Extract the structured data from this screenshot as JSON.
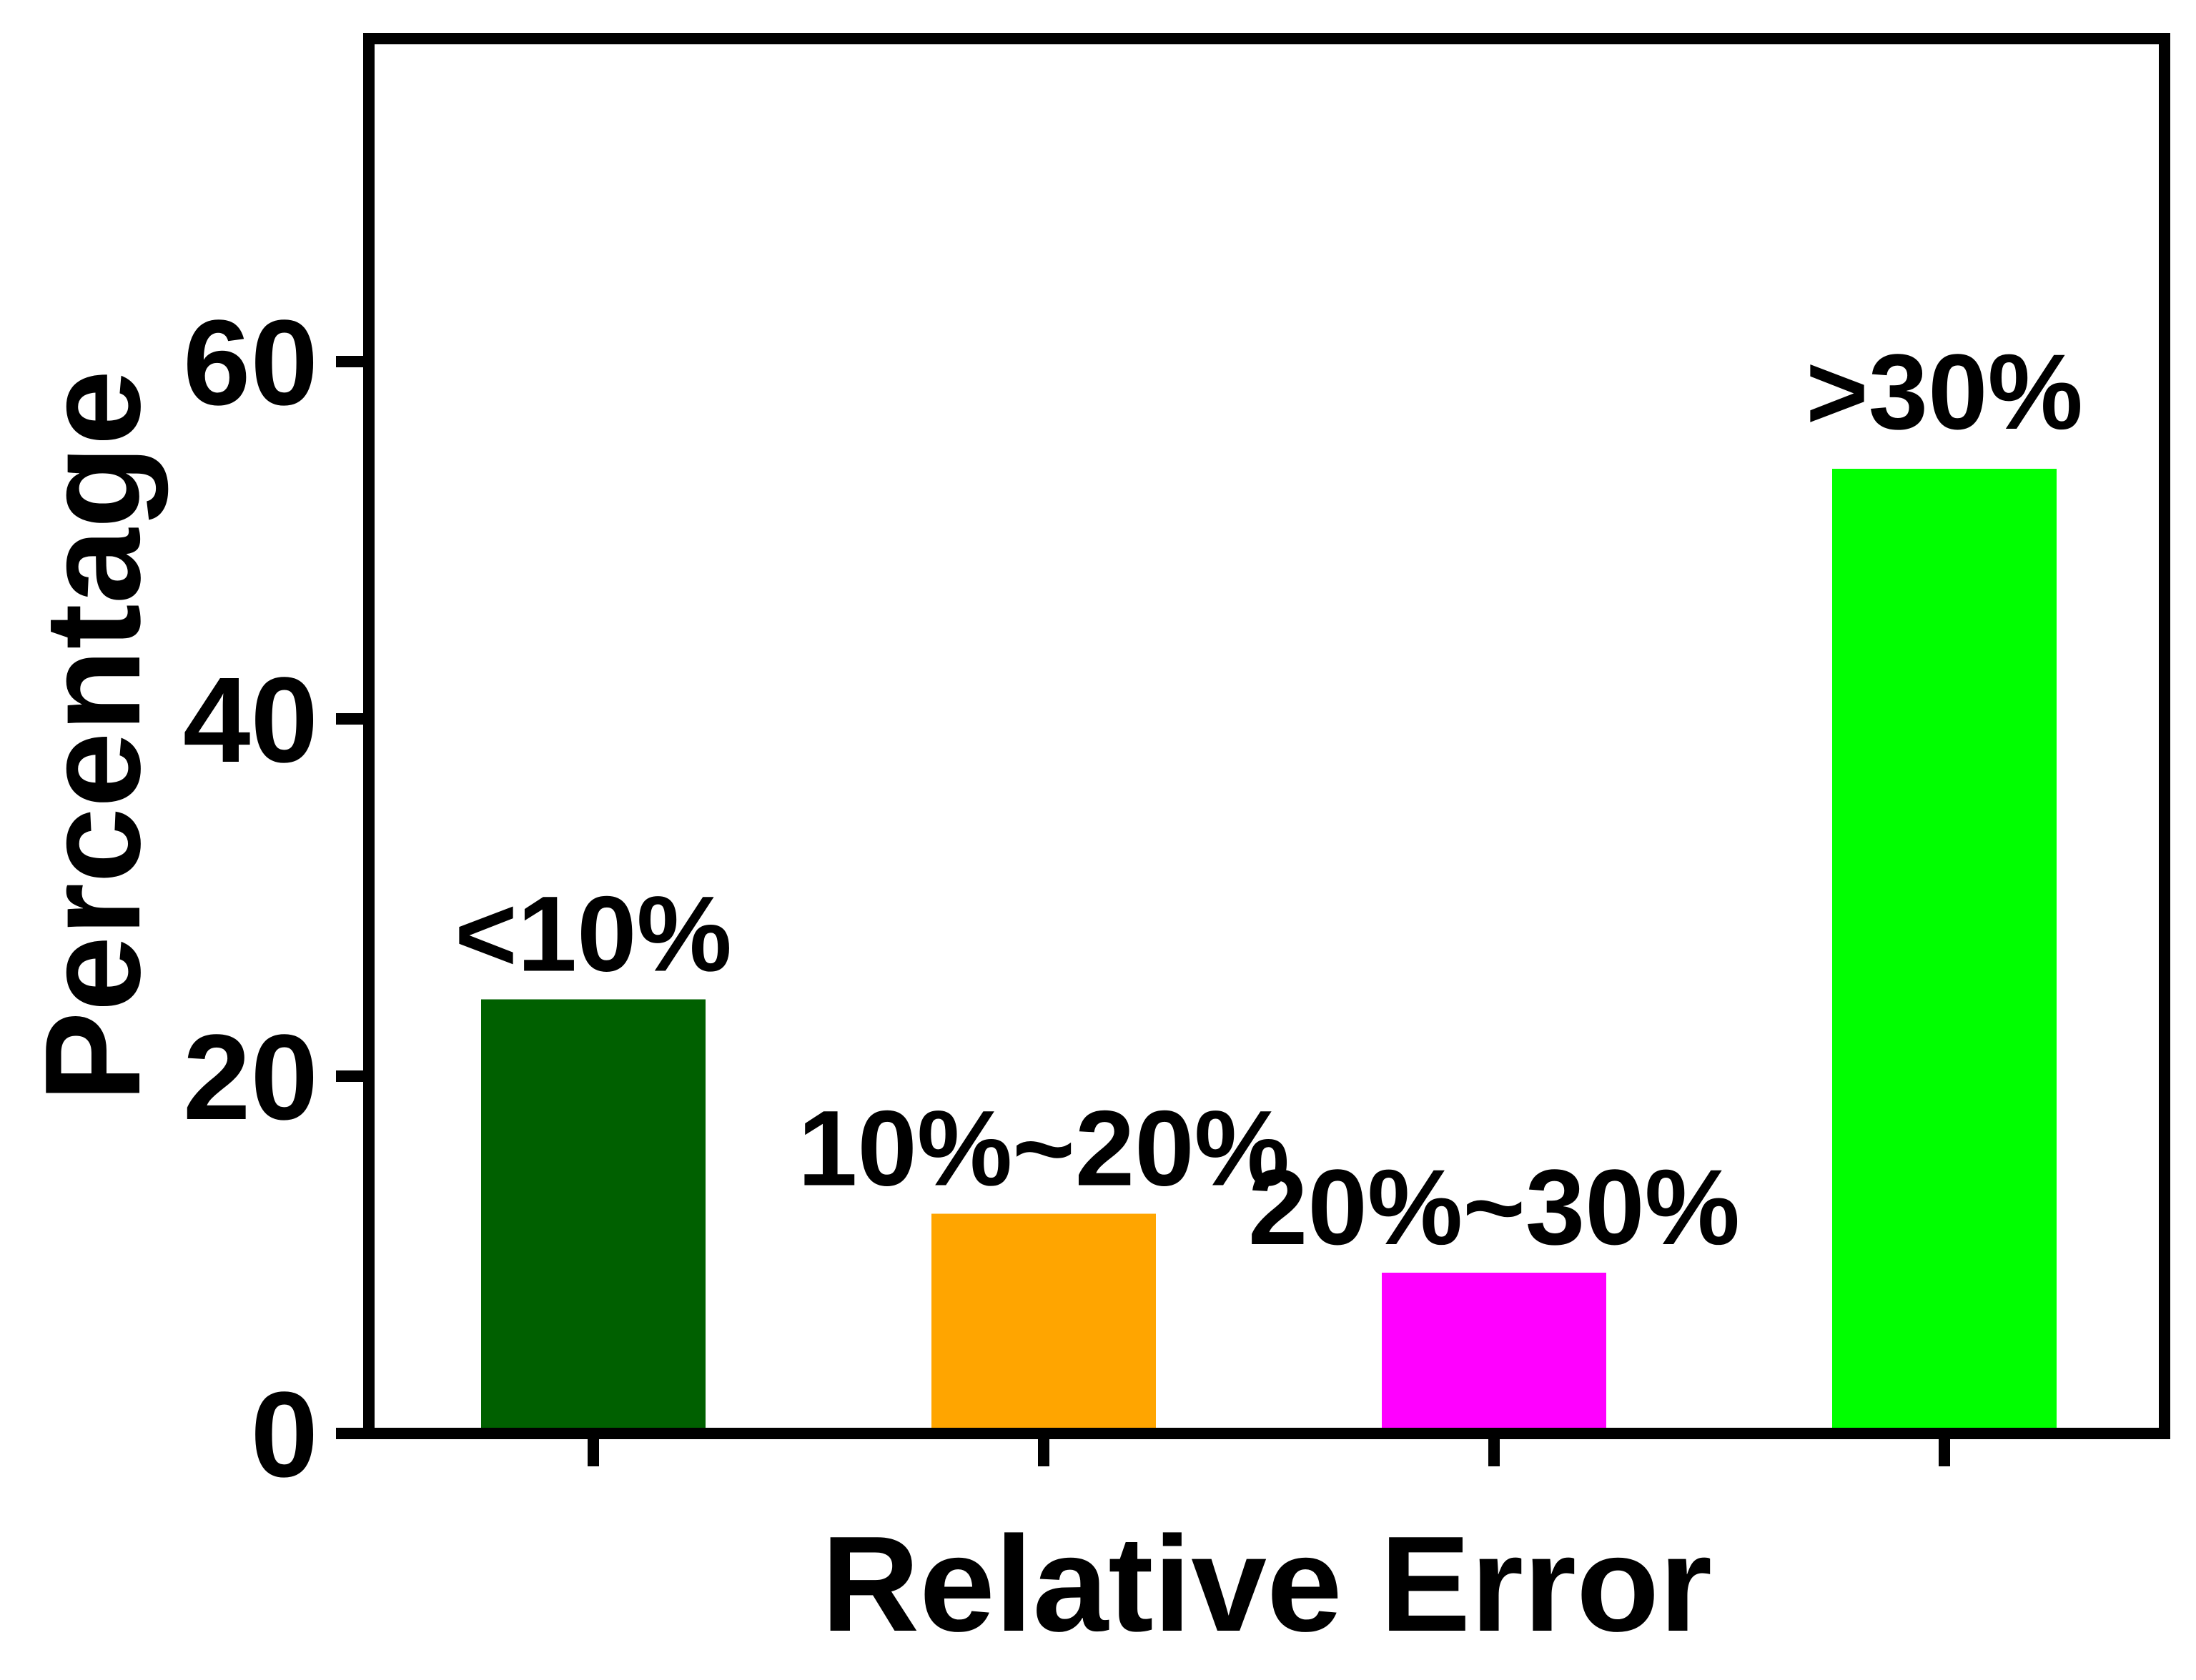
{
  "chart_data": {
    "type": "bar",
    "title": "",
    "xlabel": "Relative Error",
    "ylabel": "Percentage",
    "ylim": [
      0,
      80
    ],
    "yticks": [
      "0",
      "20",
      "40",
      "60"
    ],
    "grid": false,
    "legend": "none",
    "categories": [
      "<10%",
      "10%~20%",
      "20%~30%",
      ">30%"
    ],
    "values": [
      24.3,
      12.3,
      9.0,
      54.0
    ],
    "colors": [
      "#006000",
      "#FFA500",
      "#FF00FF",
      "#00FF00"
    ],
    "data_labels": [
      "<10%",
      "10%~20%",
      "20%~30%",
      ">30%"
    ]
  }
}
